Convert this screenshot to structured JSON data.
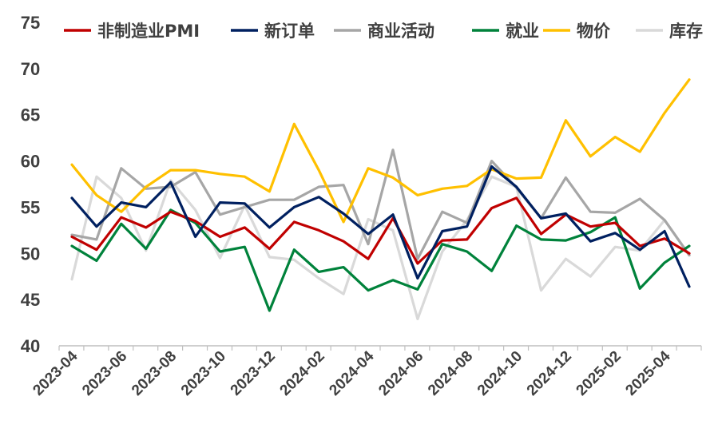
{
  "chart_data": {
    "type": "line",
    "title": "",
    "xlabel": "",
    "ylabel": "",
    "ylim": [
      40,
      75
    ],
    "yticks": [
      40,
      45,
      50,
      55,
      60,
      65,
      70,
      75
    ],
    "x": [
      "2023-04",
      "2023-05",
      "2023-06",
      "2023-07",
      "2023-08",
      "2023-09",
      "2023-10",
      "2023-11",
      "2023-12",
      "2024-01",
      "2024-02",
      "2024-03",
      "2024-04",
      "2024-05",
      "2024-06",
      "2024-07",
      "2024-08",
      "2024-09",
      "2024-10",
      "2024-11",
      "2024-12",
      "2025-01",
      "2025-02",
      "2025-03",
      "2025-04",
      "2025-05"
    ],
    "xtick_labels": [
      "2023-04",
      "2023-06",
      "2023-08",
      "2023-10",
      "2023-12",
      "2024-02",
      "2024-04",
      "2024-06",
      "2024-08",
      "2024-10",
      "2024-12",
      "2025-02",
      "2025-04"
    ],
    "grid": false,
    "legend": "top",
    "series": [
      {
        "name": "非制造业PMI",
        "color": "#c00000",
        "values": [
          51.8,
          50.4,
          53.9,
          52.8,
          54.5,
          53.5,
          51.8,
          52.8,
          50.5,
          53.4,
          52.5,
          51.3,
          49.4,
          53.8,
          48.9,
          51.4,
          51.5,
          54.9,
          56.0,
          52.1,
          54.2,
          52.9,
          53.3,
          50.8,
          51.6,
          50.0
        ]
      },
      {
        "name": "新订单",
        "color": "#002060",
        "values": [
          56.0,
          52.9,
          55.5,
          55.0,
          57.7,
          51.8,
          55.5,
          55.4,
          52.8,
          55.0,
          56.1,
          54.3,
          52.1,
          54.2,
          47.3,
          52.4,
          52.9,
          59.4,
          57.2,
          53.8,
          54.3,
          51.3,
          52.2,
          50.4,
          52.4,
          46.4
        ]
      },
      {
        "name": "商业活动",
        "color": "#a6a6a6",
        "values": [
          52.0,
          51.5,
          59.2,
          57.0,
          57.2,
          58.8,
          54.2,
          55.0,
          55.8,
          55.8,
          57.2,
          57.4,
          51.0,
          61.2,
          49.4,
          54.5,
          53.3,
          60.0,
          57.1,
          53.8,
          58.2,
          54.5,
          54.4,
          55.9,
          53.6,
          49.8
        ]
      },
      {
        "name": "就业",
        "color": "#00823b",
        "values": [
          50.8,
          49.2,
          53.2,
          50.5,
          54.7,
          53.3,
          50.2,
          50.7,
          43.8,
          50.4,
          48.0,
          48.5,
          46.0,
          47.1,
          46.1,
          51.0,
          50.2,
          48.1,
          53.0,
          51.5,
          51.4,
          52.3,
          53.9,
          46.2,
          49.0,
          50.8
        ]
      },
      {
        "name": "物价",
        "color": "#ffc000",
        "values": [
          59.6,
          56.3,
          54.5,
          57.2,
          59.0,
          59.0,
          58.6,
          58.3,
          56.7,
          64.0,
          59.0,
          53.4,
          59.2,
          58.2,
          56.3,
          57.0,
          57.3,
          59.1,
          58.1,
          58.2,
          64.4,
          60.5,
          62.6,
          61.0,
          65.2,
          68.8
        ]
      },
      {
        "name": "库存",
        "color": "#d9d9d9",
        "values": [
          47.2,
          58.3,
          56.0,
          50.3,
          57.9,
          54.7,
          49.5,
          55.2,
          49.6,
          49.3,
          47.3,
          45.6,
          53.7,
          52.5,
          42.9,
          50.2,
          53.6,
          58.3,
          57.2,
          46.0,
          49.4,
          47.5,
          50.7,
          50.3,
          53.6,
          49.8
        ]
      }
    ]
  }
}
